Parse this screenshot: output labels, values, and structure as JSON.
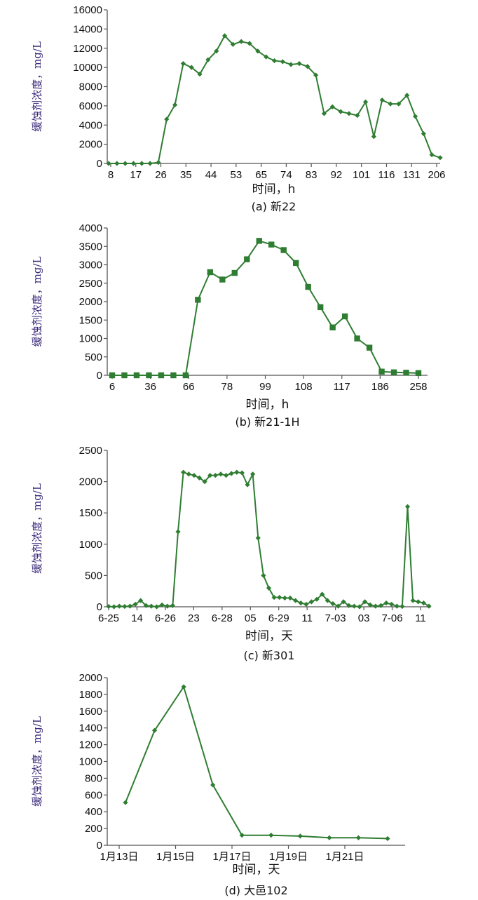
{
  "colors": {
    "series": "#2f7d32",
    "axis": "#555555",
    "ylabel": "#3b2a7a"
  },
  "chart_data": [
    {
      "type": "line",
      "marker": "diamond",
      "ylabel": "缓蚀剂浓度，mg/L",
      "xlabel": "时间，h",
      "caption": "(a)  新22",
      "ylim": [
        0,
        16000
      ],
      "yticks": [
        0,
        2000,
        4000,
        6000,
        8000,
        10000,
        12000,
        14000,
        16000
      ],
      "xticks": [
        "8",
        "17",
        "26",
        "35",
        "44",
        "53",
        "65",
        "74",
        "83",
        "92",
        "101",
        "116",
        "131",
        "206"
      ],
      "series": [
        {
          "values": [
            0,
            0,
            0,
            0,
            0,
            0,
            100,
            4600,
            6100,
            10400,
            10000,
            9300,
            10800,
            11700,
            13300,
            12400,
            12700,
            12500,
            11700,
            11100,
            10700,
            10600,
            10300,
            10400,
            10100,
            9200,
            5200,
            5900,
            5400,
            5200,
            5000,
            6400,
            2800,
            6600,
            6200,
            6200,
            7100,
            4900,
            3100,
            900,
            600
          ]
        }
      ]
    },
    {
      "type": "line",
      "marker": "square",
      "ylabel": "缓蚀剂浓度，mg/L",
      "xlabel": "时间，h",
      "caption": "(b)  新21-1H",
      "ylim": [
        0,
        4000
      ],
      "yticks": [
        0,
        500,
        1000,
        1500,
        2000,
        2500,
        3000,
        3500,
        4000
      ],
      "xticks": [
        "6",
        "36",
        "66",
        "78",
        "99",
        "108",
        "117",
        "186",
        "258"
      ],
      "series": [
        {
          "values": [
            0,
            0,
            0,
            0,
            0,
            0,
            0,
            2050,
            2800,
            2600,
            2780,
            3150,
            3650,
            3550,
            3400,
            3050,
            2400,
            1850,
            1300,
            1600,
            1000,
            750,
            100,
            80,
            70,
            60
          ]
        }
      ]
    },
    {
      "type": "line",
      "marker": "diamond",
      "ylabel": "缓蚀剂浓度，mg/L",
      "xlabel": "时间，天",
      "caption": "(c)  新301",
      "ylim": [
        0,
        2500
      ],
      "yticks": [
        0,
        500,
        1000,
        1500,
        2000,
        2500
      ],
      "xticks": [
        "6-25",
        "14",
        "6-26",
        "23",
        "6-28",
        "05",
        "6-29",
        "11",
        "7-03",
        "03",
        "7-06",
        "11"
      ],
      "series": [
        {
          "values": [
            5,
            0,
            10,
            5,
            10,
            40,
            100,
            20,
            10,
            0,
            30,
            10,
            20,
            1200,
            2150,
            2120,
            2100,
            2060,
            2000,
            2100,
            2100,
            2120,
            2100,
            2130,
            2150,
            2140,
            1950,
            2120,
            1100,
            500,
            300,
            150,
            150,
            140,
            140,
            100,
            60,
            40,
            80,
            120,
            200,
            100,
            50,
            10,
            80,
            20,
            10,
            0,
            80,
            30,
            10,
            20,
            60,
            40,
            10,
            5,
            1600,
            100,
            80,
            60,
            10
          ]
        }
      ]
    },
    {
      "type": "line",
      "marker": "diamond",
      "ylabel": "缓蚀剂浓度，mg/L",
      "xlabel": "时间，天",
      "caption": "(d)  大邑102",
      "ylim": [
        0,
        2000
      ],
      "yticks": [
        0,
        200,
        400,
        600,
        800,
        1000,
        1200,
        1400,
        1600,
        1800,
        2000
      ],
      "xticks": [
        "1月13日",
        "1月15日",
        "1月17日",
        "1月19日",
        "1月21日"
      ],
      "series": [
        {
          "values": [
            510,
            1370,
            1890,
            720,
            120,
            120,
            110,
            90,
            90,
            80
          ]
        }
      ]
    }
  ]
}
